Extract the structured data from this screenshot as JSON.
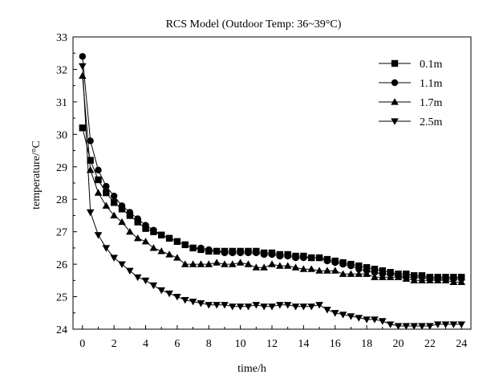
{
  "chart_data": {
    "type": "line",
    "title": "RCS Model (Outdoor Temp: 36~39°C)",
    "xlabel": "time/h",
    "ylabel": "temperature/°C",
    "xlim": [
      -0.6,
      24.6
    ],
    "ylim": [
      24,
      33
    ],
    "x_ticks": [
      0,
      2,
      4,
      6,
      8,
      10,
      12,
      14,
      16,
      18,
      20,
      22,
      24
    ],
    "y_ticks": [
      24,
      25,
      26,
      27,
      28,
      29,
      30,
      31,
      32,
      33
    ],
    "grid": false,
    "legend_position": "top-right",
    "series": [
      {
        "name": "0.1m",
        "marker": "square",
        "x": [
          0,
          0.5,
          1,
          1.5,
          2,
          2.5,
          3,
          3.5,
          4,
          4.5,
          5,
          5.5,
          6,
          6.5,
          7,
          7.5,
          8,
          8.5,
          9,
          9.5,
          10,
          10.5,
          11,
          11.5,
          12,
          12.5,
          13,
          13.5,
          14,
          14.5,
          15,
          15.5,
          16,
          16.5,
          17,
          17.5,
          18,
          18.5,
          19,
          19.5,
          20,
          20.5,
          21,
          21.5,
          22,
          22.5,
          23,
          23.5,
          24
        ],
        "y": [
          30.2,
          29.2,
          28.6,
          28.2,
          27.9,
          27.7,
          27.5,
          27.3,
          27.1,
          27.0,
          26.9,
          26.8,
          26.7,
          26.6,
          26.5,
          26.45,
          26.4,
          26.4,
          26.4,
          26.4,
          26.4,
          26.4,
          26.4,
          26.35,
          26.35,
          26.3,
          26.3,
          26.25,
          26.25,
          26.2,
          26.2,
          26.15,
          26.1,
          26.05,
          26.0,
          25.95,
          25.9,
          25.85,
          25.8,
          25.75,
          25.7,
          25.7,
          25.65,
          25.65,
          25.6,
          25.6,
          25.6,
          25.6,
          25.6
        ]
      },
      {
        "name": "1.1m",
        "marker": "circle",
        "x": [
          0,
          0.5,
          1,
          1.5,
          2,
          2.5,
          3,
          3.5,
          4,
          4.5,
          5,
          5.5,
          6,
          6.5,
          7,
          7.5,
          8,
          8.5,
          9,
          9.5,
          10,
          10.5,
          11,
          11.5,
          12,
          12.5,
          13,
          13.5,
          14,
          14.5,
          15,
          15.5,
          16,
          16.5,
          17,
          17.5,
          18,
          18.5,
          19,
          19.5,
          20,
          20.5,
          21,
          21.5,
          22,
          22.5,
          23,
          23.5,
          24
        ],
        "y": [
          32.4,
          29.8,
          28.9,
          28.4,
          28.1,
          27.8,
          27.6,
          27.4,
          27.2,
          27.05,
          26.9,
          26.8,
          26.7,
          26.6,
          26.5,
          26.5,
          26.45,
          26.4,
          26.35,
          26.35,
          26.35,
          26.35,
          26.35,
          26.3,
          26.3,
          26.25,
          26.25,
          26.2,
          26.2,
          26.2,
          26.2,
          26.1,
          26.05,
          26.0,
          25.95,
          25.85,
          25.8,
          25.75,
          25.7,
          25.7,
          25.65,
          25.6,
          25.6,
          25.6,
          25.55,
          25.55,
          25.55,
          25.55,
          25.55
        ]
      },
      {
        "name": "1.7m",
        "marker": "triangle-up",
        "x": [
          0,
          0.5,
          1,
          1.5,
          2,
          2.5,
          3,
          3.5,
          4,
          4.5,
          5,
          5.5,
          6,
          6.5,
          7,
          7.5,
          8,
          8.5,
          9,
          9.5,
          10,
          10.5,
          11,
          11.5,
          12,
          12.5,
          13,
          13.5,
          14,
          14.5,
          15,
          15.5,
          16,
          16.5,
          17,
          17.5,
          18,
          18.5,
          19,
          19.5,
          20,
          20.5,
          21,
          21.5,
          22,
          22.5,
          23,
          23.5,
          24
        ],
        "y": [
          31.8,
          28.9,
          28.2,
          27.8,
          27.5,
          27.3,
          27.0,
          26.8,
          26.7,
          26.5,
          26.4,
          26.3,
          26.2,
          26.0,
          26.0,
          26.0,
          26.0,
          26.05,
          26.0,
          26.0,
          26.05,
          26.0,
          25.9,
          25.9,
          26.0,
          25.95,
          25.95,
          25.9,
          25.85,
          25.85,
          25.8,
          25.8,
          25.8,
          25.7,
          25.7,
          25.7,
          25.7,
          25.6,
          25.6,
          25.6,
          25.6,
          25.55,
          25.5,
          25.5,
          25.5,
          25.5,
          25.5,
          25.45,
          25.45
        ]
      },
      {
        "name": "2.5m",
        "marker": "triangle-down",
        "x": [
          0,
          0.5,
          1,
          1.5,
          2,
          2.5,
          3,
          3.5,
          4,
          4.5,
          5,
          5.5,
          6,
          6.5,
          7,
          7.5,
          8,
          8.5,
          9,
          9.5,
          10,
          10.5,
          11,
          11.5,
          12,
          12.5,
          13,
          13.5,
          14,
          14.5,
          15,
          15.5,
          16,
          16.5,
          17,
          17.5,
          18,
          18.5,
          19,
          19.5,
          20,
          20.5,
          21,
          21.5,
          22,
          22.5,
          23,
          23.5,
          24
        ],
        "y": [
          32.1,
          27.6,
          26.9,
          26.5,
          26.2,
          26.0,
          25.8,
          25.6,
          25.5,
          25.35,
          25.2,
          25.1,
          25.0,
          24.9,
          24.85,
          24.8,
          24.75,
          24.75,
          24.75,
          24.7,
          24.7,
          24.7,
          24.75,
          24.7,
          24.7,
          24.75,
          24.75,
          24.7,
          24.7,
          24.7,
          24.75,
          24.6,
          24.5,
          24.45,
          24.4,
          24.35,
          24.3,
          24.3,
          24.25,
          24.15,
          24.1,
          24.1,
          24.1,
          24.1,
          24.1,
          24.15,
          24.15,
          24.15,
          24.15
        ]
      }
    ]
  }
}
